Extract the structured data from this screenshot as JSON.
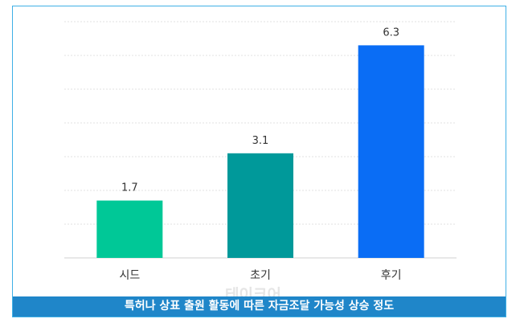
{
  "chart_data": {
    "type": "bar",
    "categories": [
      "시드",
      "초기",
      "후기"
    ],
    "values": [
      1.7,
      3.1,
      6.3
    ],
    "data_labels": [
      "1.7",
      "3.1",
      "6.3"
    ],
    "colors": [
      "#00c897",
      "#00999a",
      "#0a6df5"
    ],
    "ylim": [
      0,
      7
    ],
    "grid": true,
    "title": "특허나 상표 출원 활동에 따른 자금조달 가능성 상승 정도",
    "xlabel": "",
    "ylabel": ""
  },
  "watermark": "테이크어"
}
